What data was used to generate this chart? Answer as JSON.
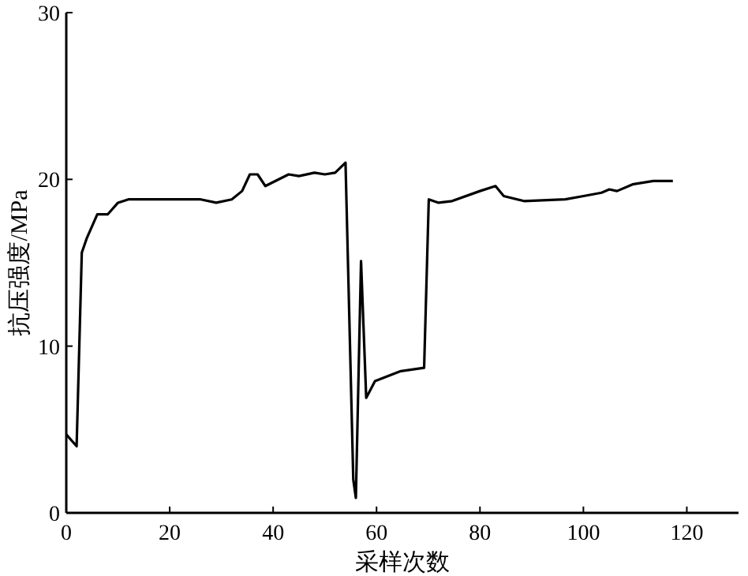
{
  "chart_data": {
    "type": "line",
    "xlabel": "采样次数",
    "ylabel": "抗压强度/MPa",
    "xlim": [
      0,
      130
    ],
    "ylim": [
      0,
      30
    ],
    "xticks": [
      0,
      20,
      40,
      60,
      80,
      100,
      120
    ],
    "yticks": [
      0,
      10,
      20,
      30
    ],
    "grid": false,
    "marker": "none",
    "line_style": "solid",
    "series": [
      {
        "color": "#000000",
        "x": [
          0,
          2,
          3,
          4,
          6,
          8,
          10,
          12,
          14,
          26,
          29,
          32,
          34,
          35.5,
          37,
          38.5,
          43,
          45,
          48,
          50,
          52,
          54,
          55.5,
          56,
          57,
          58,
          59.7,
          64.7,
          69.2,
          70.1,
          72,
          74.6,
          80,
          83,
          84.6,
          88.5,
          96.5,
          100,
          103.5,
          105,
          106.5,
          109.5,
          113.5,
          117.3
        ],
        "values": [
          4.7,
          4.0,
          15.6,
          16.5,
          17.9,
          17.9,
          18.6,
          18.8,
          18.8,
          18.8,
          18.6,
          18.8,
          19.3,
          20.3,
          20.3,
          19.6,
          20.3,
          20.2,
          20.4,
          20.3,
          20.4,
          21.0,
          2.0,
          0.9,
          15.1,
          6.9,
          7.9,
          8.5,
          8.7,
          18.8,
          18.6,
          18.7,
          19.3,
          19.6,
          19.0,
          18.7,
          18.8,
          19.0,
          19.2,
          19.4,
          19.3,
          19.7,
          19.9,
          19.9
        ]
      }
    ]
  }
}
